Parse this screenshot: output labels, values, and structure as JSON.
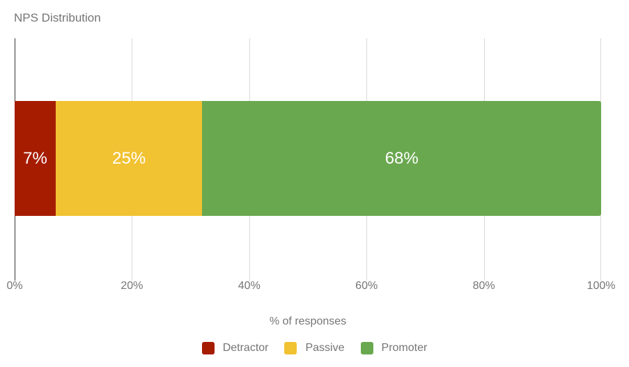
{
  "page": {
    "background": "#ffffff"
  },
  "chart_data": {
    "type": "bar",
    "orientation": "horizontal",
    "stacked": true,
    "title": "NPS Distribution",
    "xlabel": "% of responses",
    "xlim": [
      0,
      100
    ],
    "grid": true,
    "legend_position": "bottom",
    "categories": [
      ""
    ],
    "series": [
      {
        "name": "Detractor",
        "value": 7,
        "label": "7%",
        "color": "#a61c00"
      },
      {
        "name": "Passive",
        "value": 25,
        "label": "25%",
        "color": "#f1c232"
      },
      {
        "name": "Promoter",
        "value": 68,
        "label": "68%",
        "color": "#6aa84f"
      }
    ],
    "x_ticks": [
      {
        "value": 0,
        "label": "0%"
      },
      {
        "value": 20,
        "label": "20%"
      },
      {
        "value": 40,
        "label": "40%"
      },
      {
        "value": 60,
        "label": "60%"
      },
      {
        "value": 80,
        "label": "80%"
      },
      {
        "value": 100,
        "label": "100%"
      }
    ]
  },
  "colors": {
    "gridline": "#d9d9d9",
    "axis_line": "#333333",
    "tick_text": "#757575",
    "title_text": "#757575",
    "legend_text": "#757575",
    "bar_label_text": "#ffffff"
  }
}
